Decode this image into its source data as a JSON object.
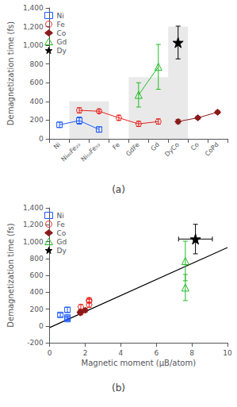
{
  "chart_data": [
    {
      "type": "line",
      "title": "(a)",
      "categories": [
        "Ni",
        "Ni₈₀Fe₂₀",
        "Ni₅₀Fe₅₀",
        "Fe",
        "GdFe",
        "Gd",
        "DyCo",
        "Co",
        "CoPd"
      ],
      "ylabel": "Demagnetization time (fs)",
      "ylim": [
        0,
        1400
      ],
      "yticks": [
        0,
        200,
        400,
        600,
        800,
        1000,
        1200,
        1400
      ],
      "grid": false,
      "legend": "upper left",
      "series": [
        {
          "name": "Ni",
          "color": "#1f5bff",
          "marker": "open square",
          "values": [
            150,
            195,
            100,
            null,
            null,
            null,
            null,
            null,
            null
          ],
          "yerr": [
            28,
            38,
            28,
            null,
            null,
            null,
            null,
            null,
            null
          ]
        },
        {
          "name": "Fe",
          "color": "#e8211a",
          "marker": "open circle",
          "values": [
            null,
            305,
            295,
            225,
            160,
            185,
            null,
            null,
            null
          ],
          "yerr": [
            null,
            28,
            20,
            28,
            28,
            28,
            null,
            null,
            null
          ]
        },
        {
          "name": "Co",
          "color": "#8b1a1a",
          "marker": "diamond",
          "values": [
            null,
            null,
            null,
            null,
            null,
            null,
            185,
            225,
            285
          ],
          "yerr": [
            null,
            null,
            null,
            null,
            null,
            null,
            22,
            18,
            18
          ]
        },
        {
          "name": "Gd",
          "color": "#22bb22",
          "marker": "open triangle",
          "values": [
            null,
            null,
            null,
            null,
            470,
            770,
            null,
            null,
            null
          ],
          "yerr": [
            null,
            null,
            null,
            null,
            130,
            240,
            null,
            null,
            null
          ]
        },
        {
          "name": "Dy",
          "color": "#000000",
          "marker": "star",
          "values": [
            null,
            null,
            null,
            null,
            null,
            null,
            1030,
            null,
            null
          ],
          "yerr": [
            null,
            null,
            null,
            null,
            null,
            null,
            175,
            null,
            null
          ]
        }
      ],
      "shaded_regions": [
        {
          "categories": [
            "Ni₈₀Fe₂₀"
          ],
          "top": 400,
          "color": "#d3d3d3"
        },
        {
          "categories": [
            "Ni₅₀Fe₅₀"
          ],
          "top": 400,
          "color": "#d3d3d3"
        },
        {
          "categories": [
            "GdFe",
            "Gd"
          ],
          "top": 660,
          "color": "#d3d3d3"
        },
        {
          "categories": [
            "DyCo"
          ],
          "top": 1200,
          "color": "#d3d3d3"
        }
      ]
    },
    {
      "type": "scatter",
      "title": "(b)",
      "xlabel": "Magnetic moment (μB/atom)",
      "ylabel": "Demagnetization time (fs)",
      "xlim": [
        0,
        10
      ],
      "xticks": [
        0,
        2,
        4,
        6,
        8,
        10
      ],
      "ylim": [
        -200,
        1400
      ],
      "yticks": [
        -200,
        0,
        200,
        400,
        600,
        800,
        1000,
        1200,
        1400
      ],
      "grid": false,
      "legend": "upper left",
      "series": [
        {
          "name": "Ni",
          "color": "#1f5bff",
          "marker": "open square",
          "x": [
            0.6,
            1.0,
            1.0,
            1.0
          ],
          "y": [
            130,
            190,
            100,
            80
          ],
          "xerr": [
            0,
            0,
            0,
            0
          ],
          "yerr": [
            20,
            30,
            20,
            20
          ]
        },
        {
          "name": "Fe",
          "color": "#e8211a",
          "marker": "open circle",
          "x": [
            2.22,
            2.22,
            2.22,
            1.75,
            1.75
          ],
          "y": [
            305,
            295,
            250,
            225,
            160
          ],
          "xerr": [
            0,
            0,
            0,
            0,
            0
          ],
          "yerr": [
            28,
            20,
            28,
            28,
            28
          ]
        },
        {
          "name": "Co",
          "color": "#8b1a1a",
          "marker": "diamond",
          "x": [
            1.72,
            1.72,
            2.0
          ],
          "y": [
            165,
            155,
            185
          ],
          "xerr": [
            0,
            0,
            0
          ],
          "yerr": [
            20,
            20,
            22
          ]
        },
        {
          "name": "Gd",
          "color": "#22bb22",
          "marker": "open triangle",
          "x": [
            7.63,
            7.63
          ],
          "y": [
            770,
            455
          ],
          "xerr": [
            0,
            0
          ],
          "yerr": [
            235,
            155
          ]
        },
        {
          "name": "Dy",
          "color": "#000000",
          "marker": "star",
          "x": [
            8.2
          ],
          "y": [
            1030
          ],
          "xerr": [
            0.95
          ],
          "yerr": [
            175
          ]
        }
      ],
      "fit_line": {
        "x": [
          0.0,
          10.0
        ],
        "y": [
          -20,
          930
        ],
        "color": "#000000"
      }
    }
  ]
}
